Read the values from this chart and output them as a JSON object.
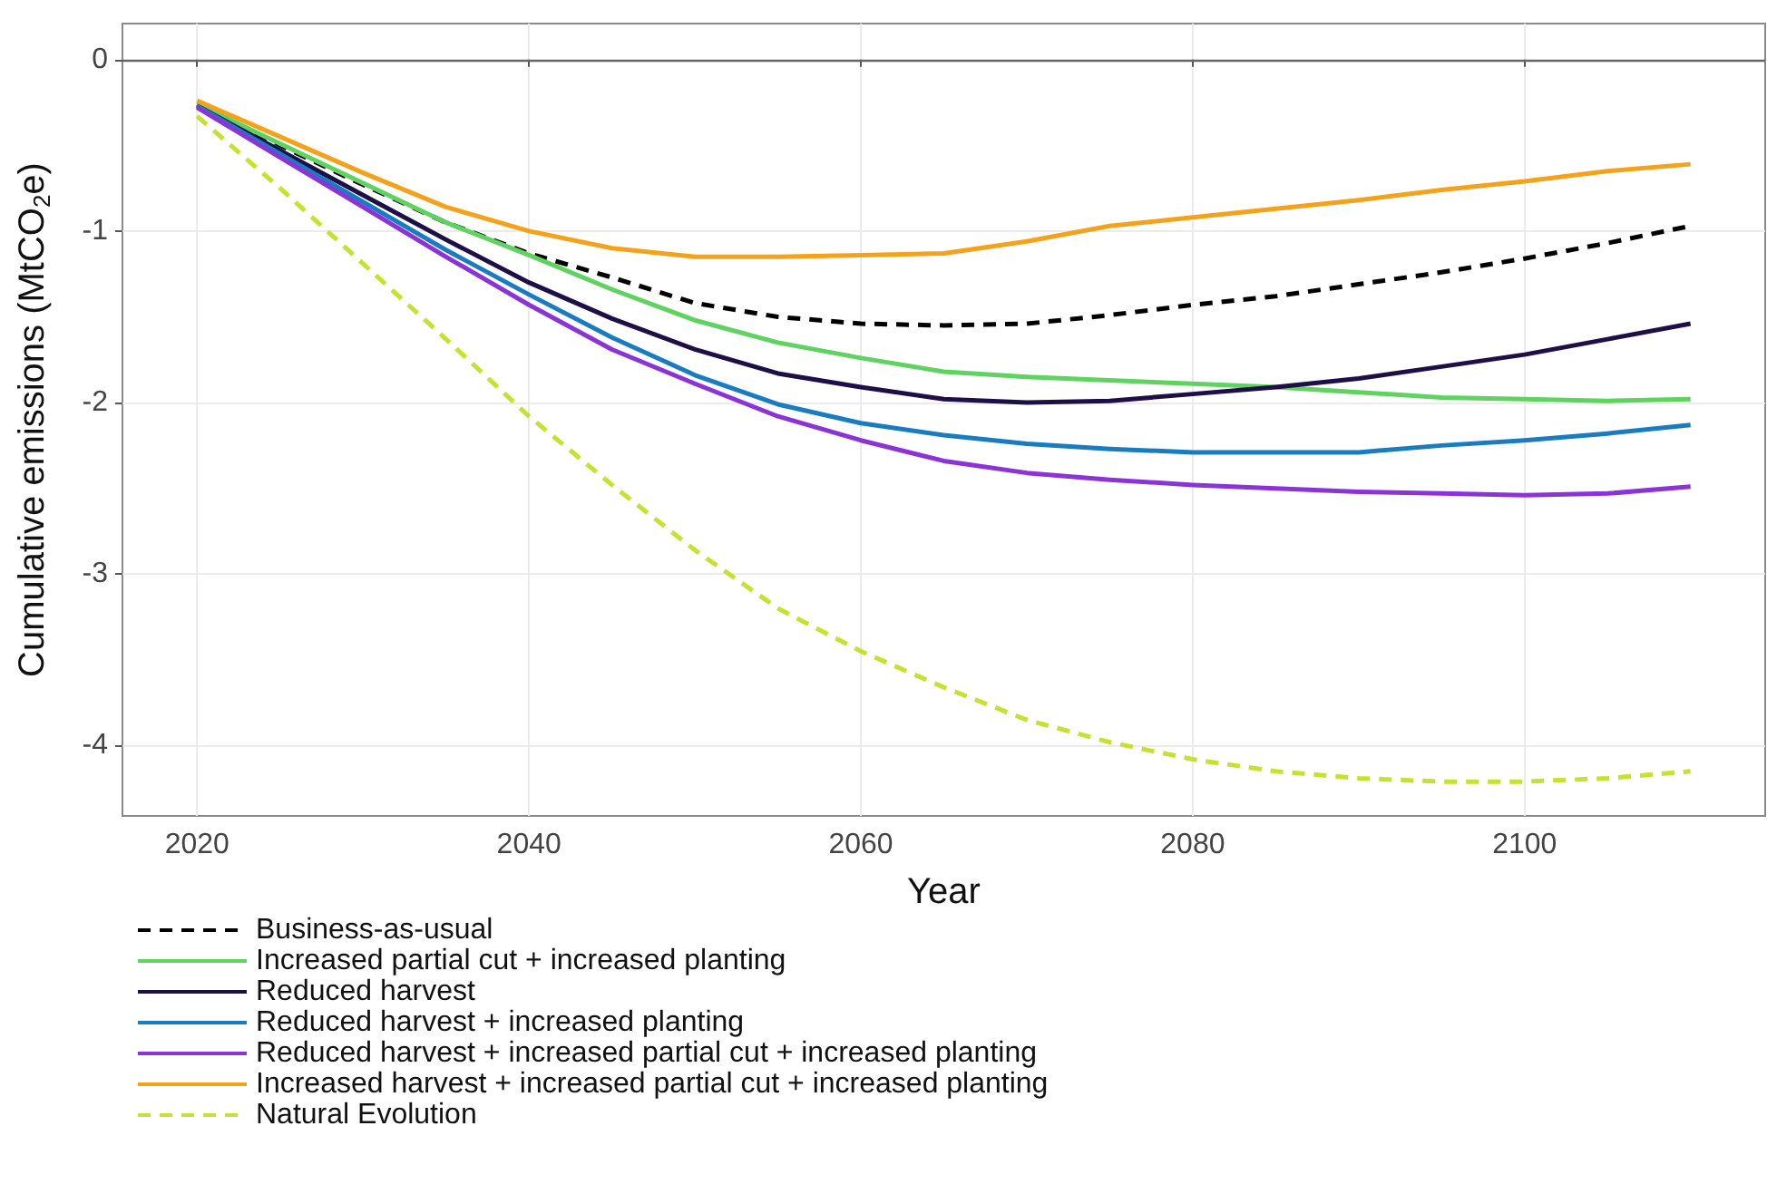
{
  "chart_data": {
    "type": "line",
    "xlabel": "Year",
    "ylabel": "Cumulative emissions (MtCO$_{2}$e)",
    "x": [
      2020,
      2025,
      2030,
      2035,
      2040,
      2045,
      2050,
      2055,
      2060,
      2065,
      2070,
      2075,
      2080,
      2085,
      2090,
      2095,
      2100,
      2105,
      2110
    ],
    "series": [
      {
        "name": "Business-as-usual",
        "color": "#000000",
        "line_style": "dashed",
        "values": [
          -0.26,
          -0.5,
          -0.73,
          -0.95,
          -1.13,
          -1.27,
          -1.42,
          -1.5,
          -1.54,
          -1.55,
          -1.54,
          -1.49,
          -1.43,
          -1.38,
          -1.31,
          -1.24,
          -1.16,
          -1.07,
          -0.97
        ]
      },
      {
        "name": "Increased partial cut + increased planting",
        "color": "#5fd35f",
        "line_style": "solid",
        "values": [
          -0.26,
          -0.49,
          -0.72,
          -0.95,
          -1.14,
          -1.34,
          -1.52,
          -1.65,
          -1.74,
          -1.82,
          -1.85,
          -1.87,
          -1.89,
          -1.91,
          -1.94,
          -1.97,
          -1.98,
          -1.99,
          -1.98
        ]
      },
      {
        "name": "Reduced harvest",
        "color": "#1f0f47",
        "line_style": "solid",
        "values": [
          -0.27,
          -0.53,
          -0.79,
          -1.05,
          -1.3,
          -1.51,
          -1.69,
          -1.83,
          -1.91,
          -1.98,
          -2.0,
          -1.99,
          -1.95,
          -1.91,
          -1.86,
          -1.79,
          -1.72,
          -1.63,
          -1.54
        ]
      },
      {
        "name": "Reduced harvest + increased planting",
        "color": "#1a7cc0",
        "line_style": "solid",
        "values": [
          -0.27,
          -0.55,
          -0.83,
          -1.11,
          -1.37,
          -1.62,
          -1.84,
          -2.01,
          -2.12,
          -2.19,
          -2.24,
          -2.27,
          -2.29,
          -2.29,
          -2.29,
          -2.25,
          -2.22,
          -2.18,
          -2.13
        ]
      },
      {
        "name": "Reduced harvest + increased partial cut + increased planting",
        "color": "#8b33d6",
        "line_style": "solid",
        "values": [
          -0.28,
          -0.57,
          -0.86,
          -1.15,
          -1.43,
          -1.69,
          -1.89,
          -2.08,
          -2.22,
          -2.34,
          -2.41,
          -2.45,
          -2.48,
          -2.5,
          -2.52,
          -2.53,
          -2.54,
          -2.53,
          -2.49
        ]
      },
      {
        "name": "Increased harvest + increased partial cut + increased planting",
        "color": "#f5a21b",
        "line_style": "solid",
        "values": [
          -0.24,
          -0.45,
          -0.66,
          -0.86,
          -1.0,
          -1.1,
          -1.15,
          -1.15,
          -1.14,
          -1.13,
          -1.06,
          -0.97,
          -0.92,
          -0.87,
          -0.82,
          -0.76,
          -0.71,
          -0.65,
          -0.61
        ]
      },
      {
        "name": "Natural Evolution",
        "color": "#c5e22e",
        "line_style": "dashed",
        "values": [
          -0.33,
          -0.75,
          -1.19,
          -1.63,
          -2.08,
          -2.48,
          -2.86,
          -3.2,
          -3.45,
          -3.66,
          -3.85,
          -3.98,
          -4.08,
          -4.15,
          -4.19,
          -4.21,
          -4.21,
          -4.19,
          -4.15
        ]
      }
    ],
    "xlim": [
      2015.5,
      2114.5
    ],
    "xticks": [
      2020,
      2040,
      2060,
      2080,
      2100
    ],
    "ylim": [
      -4.41,
      0.21
    ],
    "yticks": [
      -4,
      -3,
      -2,
      -1,
      0
    ],
    "ref_lines": [
      {
        "axis": "y",
        "value": 0,
        "color": "#666666"
      }
    ],
    "grid": true,
    "legend": "bottom",
    "marker": "none"
  }
}
